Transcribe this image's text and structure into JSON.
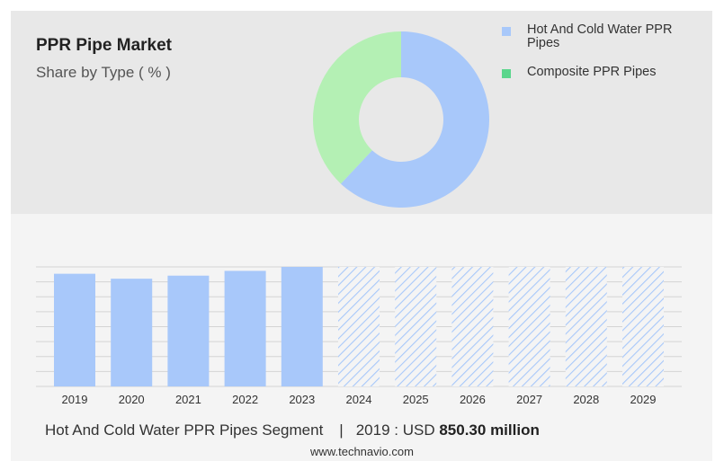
{
  "title": "PPR Pipe Market",
  "subtitle": "Share by Type ( % )",
  "colors": {
    "segment1": "#a8c8fa",
    "segment2": "#b4f0b4",
    "legend_green": "#5ad68c",
    "hatch": "#a8c8fa"
  },
  "chart_data": [
    {
      "type": "pie",
      "variant": "donut",
      "labels": [
        "Hot And Cold Water PPR Pipes",
        "Composite PPR Pipes"
      ],
      "values": [
        62,
        38
      ],
      "legend_position": "top-right"
    },
    {
      "type": "bar",
      "categories": [
        "2019",
        "2020",
        "2021",
        "2022",
        "2023",
        "2024",
        "2025",
        "2026",
        "2027",
        "2028",
        "2029"
      ],
      "values": [
        850.3,
        813,
        836,
        872,
        902,
        null,
        null,
        null,
        null,
        null,
        null
      ],
      "forecast_categories": [
        "2024",
        "2025",
        "2026",
        "2027",
        "2028",
        "2029"
      ],
      "ylim": [
        0,
        902
      ],
      "grid": true,
      "xlabel": "",
      "ylabel": ""
    }
  ],
  "footer": {
    "segment": "Hot And Cold Water PPR Pipes Segment",
    "separator": "|",
    "year_prefix": "2019 : USD",
    "value": "850.30 million"
  },
  "source": "www.technavio.com"
}
